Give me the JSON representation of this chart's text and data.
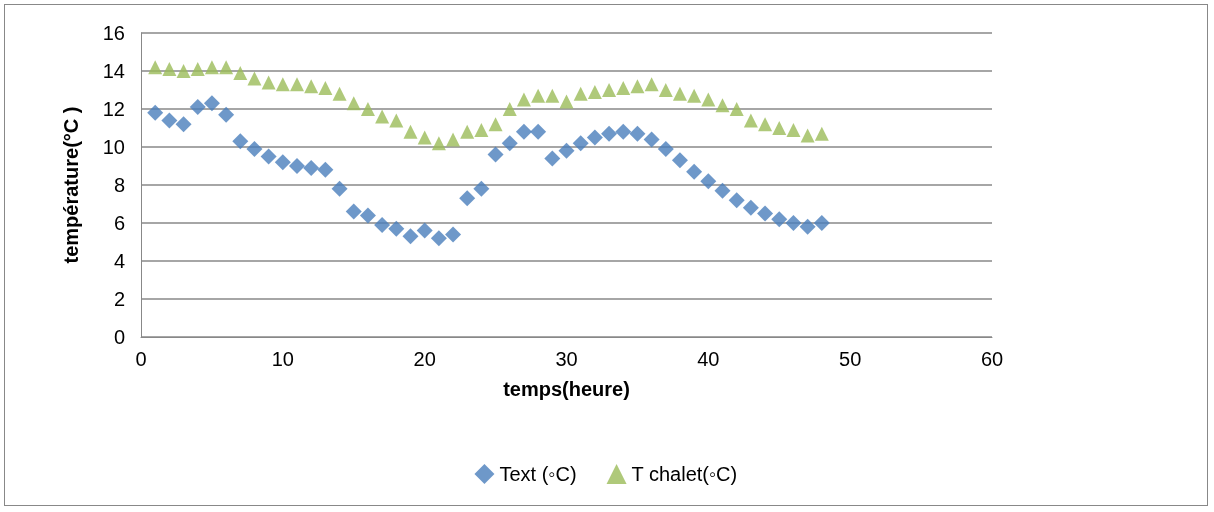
{
  "chart_data": {
    "type": "scatter",
    "xlabel": "temps(heure)",
    "ylabel": "température(°C )",
    "legend": "bottom",
    "grid": "y",
    "x": [
      1,
      2,
      3,
      4,
      5,
      6,
      7,
      8,
      9,
      10,
      11,
      12,
      13,
      14,
      15,
      16,
      17,
      18,
      19,
      20,
      21,
      22,
      23,
      24,
      25,
      26,
      27,
      28,
      29,
      30,
      31,
      32,
      33,
      34,
      35,
      36,
      37,
      38,
      39,
      40,
      41,
      42,
      43,
      44,
      45,
      46,
      47,
      48
    ],
    "xlim": [
      0,
      60
    ],
    "xticks": [
      0,
      10,
      20,
      30,
      40,
      50,
      60
    ],
    "ylim": [
      0,
      16
    ],
    "yticks": [
      0,
      2,
      4,
      6,
      8,
      10,
      12,
      14,
      16
    ],
    "series": [
      {
        "name": "Text (◦C)",
        "color": "#4a7ebb",
        "marker": "diamond",
        "values": [
          11.8,
          11.4,
          11.2,
          12.1,
          12.3,
          11.7,
          10.3,
          9.9,
          9.5,
          9.2,
          9.0,
          8.9,
          8.8,
          7.8,
          6.6,
          6.4,
          5.9,
          5.7,
          5.3,
          5.6,
          5.2,
          5.4,
          7.3,
          7.8,
          9.6,
          10.2,
          10.8,
          10.8,
          9.4,
          9.8,
          10.2,
          10.5,
          10.7,
          10.8,
          10.7,
          10.4,
          9.9,
          9.3,
          8.7,
          8.2,
          7.7,
          7.2,
          6.8,
          6.5,
          6.2,
          6.0,
          5.8,
          6.0
        ]
      },
      {
        "name": "T chalet(◦C)",
        "color": "#9bbb59",
        "marker": "triangle",
        "values": [
          14.2,
          14.1,
          14.0,
          14.1,
          14.2,
          14.2,
          13.9,
          13.6,
          13.4,
          13.3,
          13.3,
          13.2,
          13.1,
          12.8,
          12.3,
          12.0,
          11.6,
          11.4,
          10.8,
          10.5,
          10.2,
          10.4,
          10.8,
          10.9,
          11.2,
          12.0,
          12.5,
          12.7,
          12.7,
          12.4,
          12.8,
          12.9,
          13.0,
          13.1,
          13.2,
          13.3,
          13.0,
          12.8,
          12.7,
          12.5,
          12.2,
          12.0,
          11.4,
          11.2,
          11.0,
          10.9,
          10.6,
          10.7
        ]
      }
    ]
  }
}
